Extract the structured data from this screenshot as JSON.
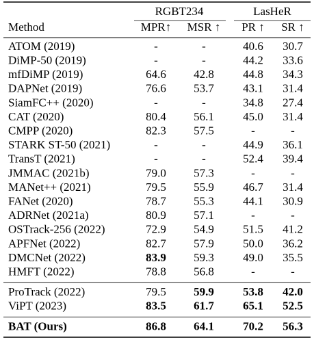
{
  "table": {
    "group_headers": [
      "RGBT234",
      "LasHeR"
    ],
    "columns": [
      "Method",
      "MPR↑",
      "MSR ↑",
      "PR ↑",
      "SR ↑"
    ],
    "groups": [
      [
        [
          "ATOM (2019)",
          "-",
          "-",
          "40.6",
          "30.7"
        ],
        [
          "DiMP-50 (2019)",
          "-",
          "-",
          "44.2",
          "33.6"
        ],
        [
          "mfDiMP (2019)",
          "64.6",
          "42.8",
          "44.8",
          "34.3"
        ],
        [
          "DAPNet (2019)",
          "76.6",
          "53.7",
          "43.1",
          "31.4"
        ],
        [
          "SiamFC++ (2020)",
          "-",
          "-",
          "34.8",
          "27.4"
        ],
        [
          "CAT (2020)",
          "80.4",
          "56.1",
          "45.0",
          "31.4"
        ],
        [
          "CMPP (2020)",
          "82.3",
          "57.5",
          "-",
          "-"
        ],
        [
          "STARK ST-50 (2021)",
          "-",
          "-",
          "44.9",
          "36.1"
        ],
        [
          "TransT (2021)",
          "-",
          "-",
          "52.4",
          "39.4"
        ],
        [
          "JMMAC (2021b)",
          "79.0",
          "57.3",
          "-",
          "-"
        ],
        [
          "MANet++ (2021)",
          "79.5",
          "55.9",
          "46.7",
          "31.4"
        ],
        [
          "FANet (2020)",
          "78.7",
          "55.3",
          "44.1",
          "30.9"
        ],
        [
          "ADRNet (2021a)",
          "80.9",
          "57.1",
          "-",
          "-"
        ],
        [
          "OSTrack-256 (2022)",
          "72.9",
          "54.9",
          "51.5",
          "41.2"
        ],
        [
          "APFNet (2022)",
          "82.7",
          "57.9",
          "50.0",
          "36.2"
        ],
        [
          "DMCNet (2022)",
          {
            "text": "83.9",
            "color": "#2ecc2e"
          },
          "59.3",
          "49.0",
          "35.5"
        ],
        [
          "HMFT (2022)",
          "78.8",
          "56.8",
          "-",
          "-"
        ]
      ],
      [
        [
          "ProTrack (2022)",
          "79.5",
          {
            "text": "59.9",
            "color": "#1f2fb0"
          },
          {
            "text": "53.8",
            "color": "#1f2fb0"
          },
          {
            "text": "42.0",
            "color": "#1f2fb0"
          }
        ],
        [
          "ViPT (2023)",
          {
            "text": "83.5",
            "color": "#1f2fb0"
          },
          {
            "text": "61.7",
            "color": "#2ecc2e"
          },
          {
            "text": "65.1",
            "color": "#2ecc2e"
          },
          {
            "text": "52.5",
            "color": "#2ecc2e"
          }
        ]
      ],
      [
        [
          {
            "text": "BAT (Ours)",
            "color": "#000000"
          },
          {
            "text": "86.8",
            "color": "#c81e1e"
          },
          {
            "text": "64.1",
            "color": "#c81e1e"
          },
          {
            "text": "70.2",
            "color": "#c81e1e"
          },
          {
            "text": "56.3",
            "color": "#c81e1e"
          }
        ]
      ]
    ]
  }
}
